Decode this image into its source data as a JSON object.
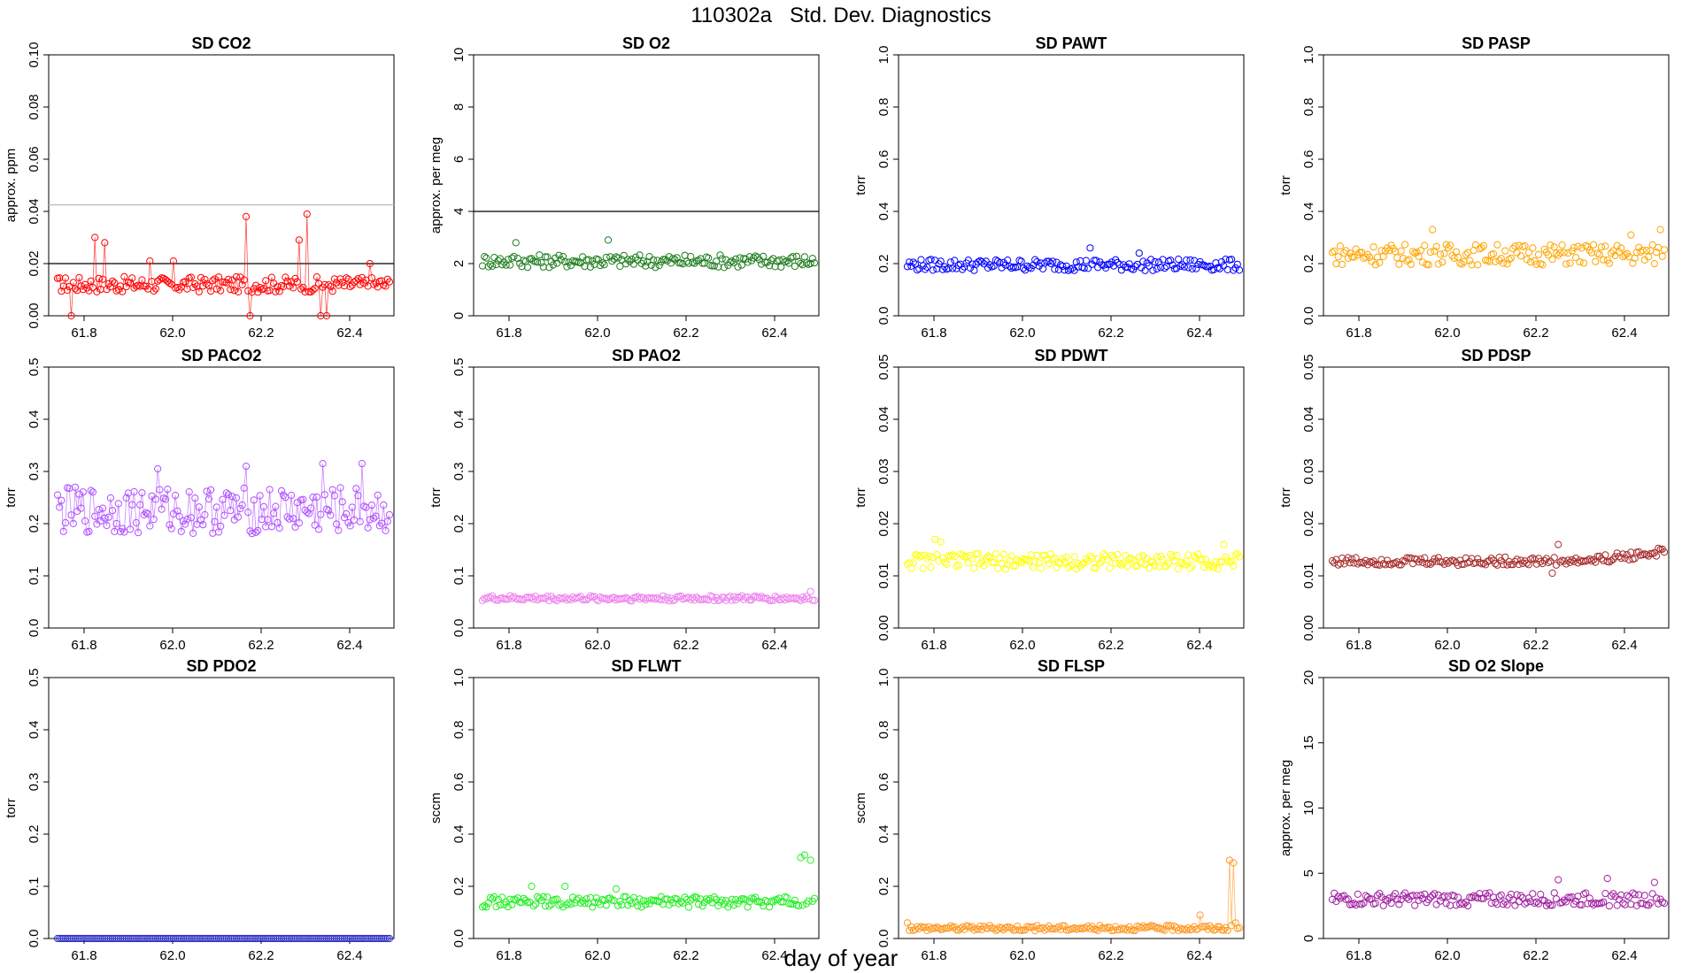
{
  "figure": {
    "title": "110302a   Std. Dev. Diagnostics",
    "xlabel": "day of year"
  },
  "chart_data": [
    {
      "type": "scatter",
      "title": "SD CO2",
      "ylabel": "approx. ppm",
      "color": "#ff0000",
      "connect": true,
      "xlim": [
        61.72,
        62.5
      ],
      "ylim": [
        0,
        0.1
      ],
      "yticks": [
        0,
        0.02,
        0.04,
        0.06,
        0.08,
        0.1
      ],
      "ytick_labels": [
        "0.00",
        "0.02",
        "0.04",
        "0.06",
        "0.08",
        "0.10"
      ],
      "xticks": [
        61.8,
        62.0,
        62.2,
        62.4
      ],
      "xtick_labels": [
        "61.8",
        "62.0",
        "62.2",
        "62.4"
      ],
      "hlines": [
        {
          "y": 0.02,
          "color": "#000000"
        },
        {
          "y": 0.0425,
          "color": "#bbbbbb"
        }
      ],
      "gen": {
        "base": 0.012,
        "amp": 0.003,
        "outliers": [
          [
            0.04,
            0.0
          ],
          [
            0.11,
            0.03
          ],
          [
            0.14,
            0.028
          ],
          [
            0.28,
            0.021
          ],
          [
            0.35,
            0.021
          ],
          [
            0.57,
            0.038
          ],
          [
            0.58,
            0.0
          ],
          [
            0.73,
            0.029
          ],
          [
            0.75,
            0.039
          ],
          [
            0.79,
            0.0
          ],
          [
            0.81,
            0.0
          ],
          [
            0.94,
            0.02
          ]
        ],
        "trend": 0
      }
    },
    {
      "type": "scatter",
      "title": "SD O2",
      "ylabel": "approx. per meg",
      "color": "#1e7d1e",
      "connect": false,
      "xlim": [
        61.72,
        62.5
      ],
      "ylim": [
        0,
        10
      ],
      "yticks": [
        0,
        2,
        4,
        6,
        8,
        10
      ],
      "ytick_labels": [
        "0",
        "2",
        "4",
        "6",
        "8",
        "10"
      ],
      "xticks": [
        61.8,
        62.0,
        62.2,
        62.4
      ],
      "xtick_labels": [
        "61.8",
        "62.0",
        "62.2",
        "62.4"
      ],
      "hlines": [
        {
          "y": 4,
          "color": "#000000"
        }
      ],
      "gen": {
        "base": 2.1,
        "amp": 0.25,
        "outliers": [
          [
            0.1,
            2.8
          ],
          [
            0.38,
            2.9
          ]
        ],
        "trend": 0
      }
    },
    {
      "type": "scatter",
      "title": "SD PAWT",
      "ylabel": "torr",
      "color": "#0000ff",
      "connect": false,
      "xlim": [
        61.72,
        62.5
      ],
      "ylim": [
        0,
        1
      ],
      "yticks": [
        0,
        0.2,
        0.4,
        0.6,
        0.8,
        1.0
      ],
      "ytick_labels": [
        "0.0",
        "0.2",
        "0.4",
        "0.6",
        "0.8",
        "1.0"
      ],
      "xticks": [
        61.8,
        62.0,
        62.2,
        62.4
      ],
      "xtick_labels": [
        "61.8",
        "62.0",
        "62.2",
        "62.4"
      ],
      "hlines": [],
      "gen": {
        "base": 0.195,
        "amp": 0.022,
        "outliers": [
          [
            0.55,
            0.26
          ],
          [
            0.7,
            0.24
          ]
        ],
        "trend": 0
      }
    },
    {
      "type": "scatter",
      "title": "SD PASP",
      "ylabel": "torr",
      "color": "#ffa500",
      "connect": false,
      "xlim": [
        61.72,
        62.5
      ],
      "ylim": [
        0,
        1
      ],
      "yticks": [
        0,
        0.2,
        0.4,
        0.6,
        0.8,
        1.0
      ],
      "ytick_labels": [
        "0.0",
        "0.2",
        "0.4",
        "0.6",
        "0.8",
        "1.0"
      ],
      "xticks": [
        61.8,
        62.0,
        62.2,
        62.4
      ],
      "xtick_labels": [
        "61.8",
        "62.0",
        "62.2",
        "62.4"
      ],
      "hlines": [],
      "gen": {
        "base": 0.235,
        "amp": 0.04,
        "outliers": [
          [
            0.3,
            0.33
          ],
          [
            0.99,
            0.33
          ],
          [
            0.9,
            0.31
          ]
        ],
        "trend": 0
      }
    },
    {
      "type": "scatter",
      "title": "SD PACO2",
      "ylabel": "torr",
      "color": "#b04fff",
      "connect": true,
      "xlim": [
        61.72,
        62.5
      ],
      "ylim": [
        0,
        0.5
      ],
      "yticks": [
        0,
        0.1,
        0.2,
        0.3,
        0.4,
        0.5
      ],
      "ytick_labels": [
        "0.0",
        "0.1",
        "0.2",
        "0.3",
        "0.4",
        "0.5"
      ],
      "xticks": [
        61.8,
        62.0,
        62.2,
        62.4
      ],
      "xtick_labels": [
        "61.8",
        "62.0",
        "62.2",
        "62.4"
      ],
      "hlines": [],
      "gen": {
        "base": 0.225,
        "amp": 0.045,
        "outliers": [
          [
            0.3,
            0.305
          ],
          [
            0.57,
            0.31
          ],
          [
            0.8,
            0.315
          ],
          [
            0.92,
            0.315
          ]
        ],
        "trend": 0
      }
    },
    {
      "type": "scatter",
      "title": "SD PAO2",
      "ylabel": "torr",
      "color": "#ee82ee",
      "connect": false,
      "xlim": [
        61.72,
        62.5
      ],
      "ylim": [
        0,
        0.5
      ],
      "yticks": [
        0,
        0.1,
        0.2,
        0.3,
        0.4,
        0.5
      ],
      "ytick_labels": [
        "0.0",
        "0.1",
        "0.2",
        "0.3",
        "0.4",
        "0.5"
      ],
      "xticks": [
        61.8,
        62.0,
        62.2,
        62.4
      ],
      "xtick_labels": [
        "61.8",
        "62.0",
        "62.2",
        "62.4"
      ],
      "hlines": [],
      "gen": {
        "base": 0.057,
        "amp": 0.005,
        "outliers": [
          [
            0.99,
            0.07
          ]
        ],
        "trend": 0
      }
    },
    {
      "type": "scatter",
      "title": "SD PDWT",
      "ylabel": "torr",
      "color": "#ffff00",
      "connect": false,
      "xlim": [
        61.72,
        62.5
      ],
      "ylim": [
        0,
        0.05
      ],
      "yticks": [
        0,
        0.01,
        0.02,
        0.03,
        0.04,
        0.05
      ],
      "ytick_labels": [
        "0.00",
        "0.01",
        "0.02",
        "0.03",
        "0.04",
        "0.05"
      ],
      "xticks": [
        61.8,
        62.0,
        62.2,
        62.4
      ],
      "xtick_labels": [
        "61.8",
        "62.0",
        "62.2",
        "62.4"
      ],
      "hlines": [],
      "gen": {
        "base": 0.0128,
        "amp": 0.0015,
        "outliers": [
          [
            0.08,
            0.017
          ],
          [
            0.1,
            0.0165
          ],
          [
            0.95,
            0.016
          ]
        ],
        "trend": 0
      }
    },
    {
      "type": "scatter",
      "title": "SD PDSP",
      "ylabel": "torr",
      "color": "#a52a2a",
      "connect": false,
      "xlim": [
        61.72,
        62.5
      ],
      "ylim": [
        0,
        0.05
      ],
      "yticks": [
        0,
        0.01,
        0.02,
        0.03,
        0.04,
        0.05
      ],
      "ytick_labels": [
        "0.00",
        "0.01",
        "0.02",
        "0.03",
        "0.04",
        "0.05"
      ],
      "xticks": [
        61.8,
        62.0,
        62.2,
        62.4
      ],
      "xtick_labels": [
        "61.8",
        "62.0",
        "62.2",
        "62.4"
      ],
      "hlines": [],
      "gen": {
        "base": 0.0128,
        "amp": 0.0008,
        "outliers": [
          [
            0.68,
            0.016
          ],
          [
            0.66,
            0.0105
          ]
        ],
        "trend": 0.0018
      }
    },
    {
      "type": "scatter",
      "title": "SD PDO2",
      "ylabel": "torr",
      "color": "#3030cc",
      "connect": true,
      "xlim": [
        61.72,
        62.5
      ],
      "ylim": [
        0,
        0.5
      ],
      "yticks": [
        0,
        0.1,
        0.2,
        0.3,
        0.4,
        0.5
      ],
      "ytick_labels": [
        "0.0",
        "0.1",
        "0.2",
        "0.3",
        "0.4",
        "0.5"
      ],
      "xticks": [
        61.8,
        62.0,
        62.2,
        62.4
      ],
      "xtick_labels": [
        "61.8",
        "62.0",
        "62.2",
        "62.4"
      ],
      "hlines": [],
      "gen": {
        "base": 0.0,
        "amp": 0.0,
        "outliers": [],
        "trend": 0
      }
    },
    {
      "type": "scatter",
      "title": "SD FLWT",
      "ylabel": "sccm",
      "color": "#22ee22",
      "connect": false,
      "xlim": [
        61.72,
        62.5
      ],
      "ylim": [
        0,
        1
      ],
      "yticks": [
        0,
        0.2,
        0.4,
        0.6,
        0.8,
        1.0
      ],
      "ytick_labels": [
        "0.0",
        "0.2",
        "0.4",
        "0.6",
        "0.8",
        "1.0"
      ],
      "xticks": [
        61.8,
        62.0,
        62.2,
        62.4
      ],
      "xtick_labels": [
        "61.8",
        "62.0",
        "62.2",
        "62.4"
      ],
      "hlines": [],
      "gen": {
        "base": 0.14,
        "amp": 0.02,
        "outliers": [
          [
            0.96,
            0.31
          ],
          [
            0.97,
            0.32
          ],
          [
            0.99,
            0.3
          ],
          [
            0.15,
            0.2
          ],
          [
            0.25,
            0.2
          ],
          [
            0.4,
            0.19
          ]
        ],
        "trend": 0
      }
    },
    {
      "type": "scatter",
      "title": "SD FLSP",
      "ylabel": "sccm",
      "color": "#ff9922",
      "connect": true,
      "xlim": [
        61.72,
        62.5
      ],
      "ylim": [
        0,
        1
      ],
      "yticks": [
        0,
        0.2,
        0.4,
        0.6,
        0.8,
        1.0
      ],
      "ytick_labels": [
        "0.0",
        "0.2",
        "0.4",
        "0.6",
        "0.8",
        "1.0"
      ],
      "xticks": [
        61.8,
        62.0,
        62.2,
        62.4
      ],
      "xtick_labels": [
        "61.8",
        "62.0",
        "62.2",
        "62.4"
      ],
      "hlines": [],
      "gen": {
        "base": 0.04,
        "amp": 0.01,
        "outliers": [
          [
            0.97,
            0.3
          ],
          [
            0.98,
            0.29
          ],
          [
            0.99,
            0.06
          ],
          [
            0.0,
            0.06
          ],
          [
            0.88,
            0.09
          ]
        ],
        "trend": 0
      }
    },
    {
      "type": "scatter",
      "title": "SD O2 Slope",
      "ylabel": "approx. per meg",
      "color": "#a020a0",
      "connect": false,
      "xlim": [
        61.72,
        62.5
      ],
      "ylim": [
        0,
        20
      ],
      "yticks": [
        0,
        5,
        10,
        15,
        20
      ],
      "ytick_labels": [
        "0",
        "5",
        "10",
        "15",
        "20"
      ],
      "xticks": [
        61.8,
        62.0,
        62.2,
        62.4
      ],
      "xtick_labels": [
        "61.8",
        "62.0",
        "62.2",
        "62.4"
      ],
      "hlines": [],
      "gen": {
        "base": 3.0,
        "amp": 0.5,
        "outliers": [
          [
            0.68,
            4.5
          ],
          [
            0.83,
            4.6
          ],
          [
            0.97,
            4.3
          ]
        ],
        "trend": 0
      }
    }
  ]
}
